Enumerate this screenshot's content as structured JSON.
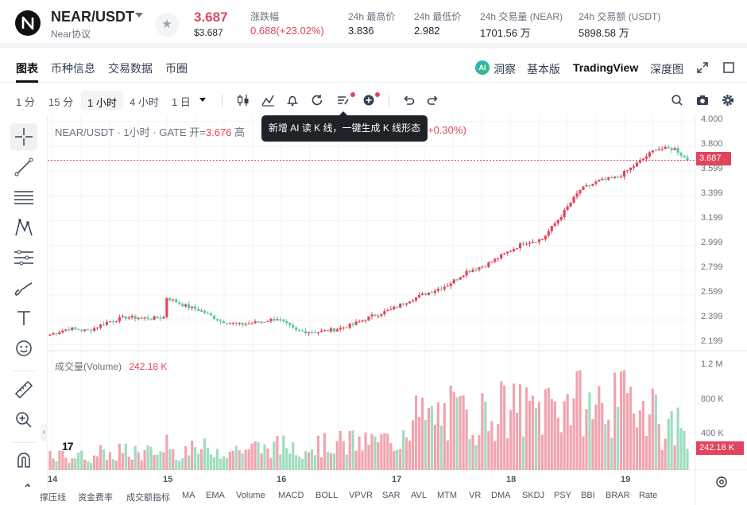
{
  "header": {
    "pair": "NEAR/USDT",
    "sub": "Near协议",
    "price": "3.687",
    "price_usd": "$3.687",
    "stats": [
      {
        "label": "涨跌幅",
        "value": "0.688(+23.02%)",
        "red": true
      },
      {
        "label": "24h 最高价",
        "value": "3.836",
        "red": false
      },
      {
        "label": "24h 最低价",
        "value": "2.982",
        "red": false
      },
      {
        "label": "24h 交易量 (NEAR)",
        "value": "1701.56 万",
        "red": false
      },
      {
        "label": "24h 交易额 (USDT)",
        "value": "5898.58 万",
        "red": false
      }
    ]
  },
  "tabs": {
    "left": [
      "图表",
      "币种信息",
      "交易数据",
      "币圈"
    ],
    "insight": "洞察",
    "basic": "基本版",
    "tradingview": "TradingView",
    "depth": "深度图",
    "ai_badge": "AI"
  },
  "toolbar": {
    "intervals": [
      "1 分",
      "15 分",
      "1 小时",
      "4 小时",
      "1 日"
    ],
    "active_interval": "1 小时"
  },
  "tooltip": "新增 AI 读 K 线，一键生成 K 线形态",
  "legend": {
    "title": "NEAR/USDT · 1小时 · GATE",
    "open_label": "开=",
    "open_value": "3.676",
    "high_label": "高",
    "change": "+0.30%)"
  },
  "volume": {
    "label": "成交量(Volume)",
    "value": "242.18 K",
    "tag": "242.18 K"
  },
  "price_tag": "3.687",
  "y_ticks": [
    "4.000",
    "3.800",
    "3.599",
    "3.399",
    "3.199",
    "2.999",
    "2.799",
    "2.599",
    "2.399",
    "2.199"
  ],
  "vol_ticks": [
    "1.2 M",
    "800 K",
    "400 K"
  ],
  "x_ticks": [
    "14",
    "15",
    "16",
    "17",
    "18",
    "19"
  ],
  "tv_logo": "17",
  "indicators": [
    "撑压线",
    "资金费率",
    "成交额指标",
    "MA",
    "EMA",
    "Volume",
    "MACD",
    "BOLL",
    "VPVR",
    "SAR",
    "AVL",
    "MTM",
    "VR",
    "DMA",
    "SKDJ",
    "PSY",
    "BBI",
    "BRAR",
    "Rate"
  ],
  "colors": {
    "up": "#e0455c",
    "down": "#5cc99d",
    "vol_up": "#f1a4ae",
    "vol_down": "#9fdcc0"
  },
  "chart_data": {
    "type": "candlestick",
    "price_ylim": [
      2.15,
      4.05
    ],
    "volume_ylim": [
      0,
      1300000
    ],
    "x_labels": [
      "14",
      "15",
      "16",
      "17",
      "18",
      "19"
    ],
    "waypoints": [
      [
        0,
        2.28
      ],
      [
        6,
        2.33
      ],
      [
        12,
        2.31
      ],
      [
        18,
        2.38
      ],
      [
        24,
        2.42
      ],
      [
        32,
        2.41
      ],
      [
        36,
        2.42
      ],
      [
        37,
        2.58
      ],
      [
        42,
        2.52
      ],
      [
        48,
        2.47
      ],
      [
        54,
        2.39
      ],
      [
        60,
        2.36
      ],
      [
        66,
        2.38
      ],
      [
        72,
        2.41
      ],
      [
        78,
        2.31
      ],
      [
        84,
        2.3
      ],
      [
        90,
        2.32
      ],
      [
        96,
        2.36
      ],
      [
        102,
        2.43
      ],
      [
        108,
        2.48
      ],
      [
        114,
        2.56
      ],
      [
        120,
        2.62
      ],
      [
        126,
        2.68
      ],
      [
        132,
        2.79
      ],
      [
        138,
        2.84
      ],
      [
        144,
        2.93
      ],
      [
        150,
        3.02
      ],
      [
        156,
        3.05
      ],
      [
        162,
        3.24
      ],
      [
        168,
        3.45
      ],
      [
        174,
        3.52
      ],
      [
        180,
        3.55
      ],
      [
        186,
        3.66
      ],
      [
        192,
        3.78
      ],
      [
        198,
        3.78
      ],
      [
        202,
        3.687
      ]
    ],
    "last_close": 3.687,
    "last_volume": 242180
  }
}
